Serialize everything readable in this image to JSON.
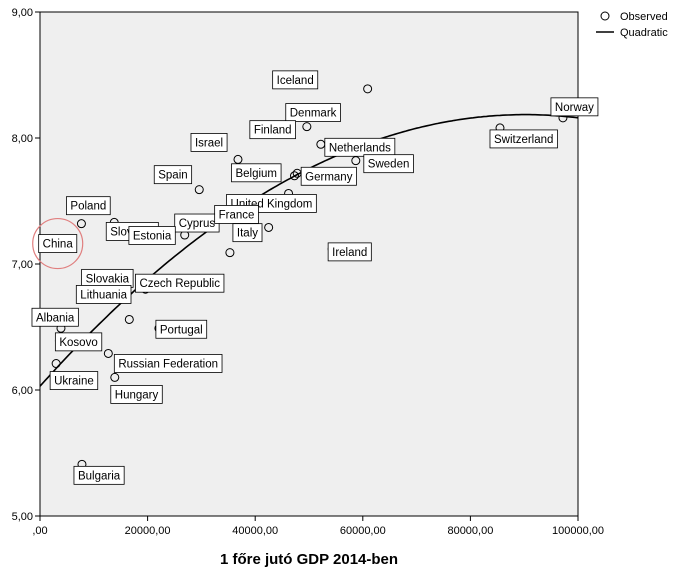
{
  "chart_data": {
    "type": "scatter",
    "xlabel": "1 főre jutó GDP 2014-ben",
    "ylabel": "",
    "xlim": [
      0,
      100000
    ],
    "ylim": [
      5,
      9
    ],
    "x_ticks": [
      0,
      20000,
      40000,
      60000,
      80000,
      100000
    ],
    "x_tick_labels": [
      ",00",
      "20000,00",
      "40000,00",
      "60000,00",
      "80000,00",
      "100000,00"
    ],
    "y_ticks": [
      5,
      6,
      7,
      8,
      9
    ],
    "y_tick_labels": [
      "5,00",
      "6,00",
      "7,00",
      "8,00",
      "9,00"
    ],
    "legend": {
      "placement": "top-right",
      "entries": [
        {
          "label": "Observed",
          "marker": "circle"
        },
        {
          "label": "Quadratic",
          "marker": "line"
        }
      ]
    },
    "fit": {
      "type": "quadratic",
      "a": 6.03,
      "b": 4.78e-05,
      "c": -2.65e-10
    },
    "points": [
      {
        "label": "Norway",
        "x": 97200,
        "y": 8.16
      },
      {
        "label": "Switzerland",
        "x": 85500,
        "y": 8.08
      },
      {
        "label": "Iceland",
        "x": 60900,
        "y": 8.39
      },
      {
        "label": "Denmark",
        "x": 52000,
        "y": 8.21
      },
      {
        "label": "Finland",
        "x": 49600,
        "y": 8.09
      },
      {
        "label": "Netherlands",
        "x": 52200,
        "y": 7.95
      },
      {
        "label": "Sweden",
        "x": 58700,
        "y": 7.82
      },
      {
        "label": "Israel",
        "x": 36800,
        "y": 7.83
      },
      {
        "label": "Belgium",
        "x": 47300,
        "y": 7.7
      },
      {
        "label": "Germany",
        "x": 47800,
        "y": 7.72
      },
      {
        "label": "Spain",
        "x": 29600,
        "y": 7.59
      },
      {
        "label": "United Kingdom",
        "x": 46200,
        "y": 7.56
      },
      {
        "label": "Cyprus",
        "x": 26900,
        "y": 7.23
      },
      {
        "label": "Poland",
        "x": 7700,
        "y": 7.32
      },
      {
        "label": "Slovenia",
        "x": 13800,
        "y": 7.33
      },
      {
        "label": "China",
        "x": 3100,
        "y": 7.17
      },
      {
        "label": "Italy",
        "x": 35300,
        "y": 7.09
      },
      {
        "label": "France",
        "x": 42500,
        "y": 7.29
      },
      {
        "label": "Ireland",
        "x": 54300,
        "y": 7.12
      },
      {
        "label": "Slovakia",
        "x": 18700,
        "y": 6.87
      },
      {
        "label": "Estonia",
        "x": 23400,
        "y": 7.25
      },
      {
        "label": "Lithuania",
        "x": 16600,
        "y": 6.56
      },
      {
        "label": "Czech Republic",
        "x": 19600,
        "y": 6.8
      },
      {
        "label": "Albania",
        "x": 3900,
        "y": 6.49
      },
      {
        "label": "Kosovo",
        "x": 3600,
        "y": 6.39
      },
      {
        "label": "Portugal",
        "x": 22100,
        "y": 6.49
      },
      {
        "label": "Ukraine",
        "x": 3000,
        "y": 6.21
      },
      {
        "label": "Russian Federation",
        "x": 12700,
        "y": 6.29
      },
      {
        "label": "Hungary",
        "x": 13900,
        "y": 6.1
      },
      {
        "label": "Bulgaria",
        "x": 7800,
        "y": 5.41
      }
    ]
  }
}
